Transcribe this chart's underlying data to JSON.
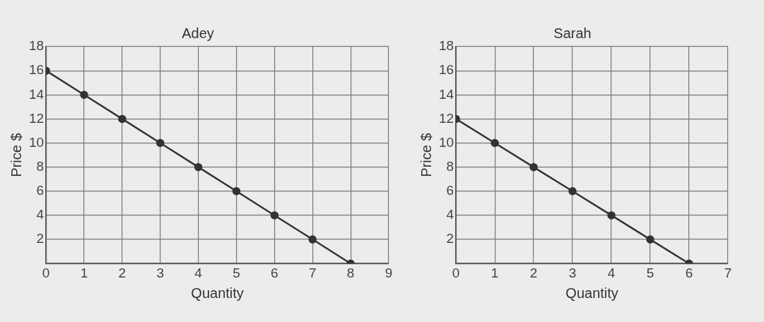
{
  "chart_data": [
    {
      "type": "line",
      "title": "Adey",
      "xlabel": "Quantity",
      "ylabel": "Price $",
      "x": [
        0,
        1,
        2,
        3,
        4,
        5,
        6,
        7,
        8
      ],
      "series": [
        {
          "color": "#333333",
          "values": [
            16,
            14,
            12,
            10,
            8,
            6,
            4,
            2,
            0
          ]
        }
      ],
      "xlim": [
        0,
        9
      ],
      "xticks": [
        0,
        1,
        2,
        3,
        4,
        5,
        6,
        7,
        8,
        9
      ],
      "ylim": [
        0,
        18
      ],
      "yticks": [
        {
          "value": 0,
          "label": null
        },
        2,
        4,
        6,
        8,
        10,
        12,
        14,
        16,
        18
      ],
      "grid": true,
      "marker": "circle"
    },
    {
      "type": "line",
      "title": "Sarah",
      "xlabel": "Quantity",
      "ylabel": "Price $",
      "x": [
        0,
        1,
        2,
        3,
        4,
        5,
        6
      ],
      "series": [
        {
          "color": "#333333",
          "values": [
            12,
            10,
            8,
            6,
            4,
            2,
            0
          ]
        }
      ],
      "xlim": [
        0,
        7
      ],
      "xticks": [
        0,
        1,
        2,
        3,
        4,
        5,
        6,
        7
      ],
      "ylim": [
        0,
        18
      ],
      "yticks": [
        {
          "value": 0,
          "label": null
        },
        2,
        4,
        6,
        8,
        10,
        12,
        14,
        16,
        18
      ],
      "grid": true,
      "marker": "circle"
    }
  ]
}
